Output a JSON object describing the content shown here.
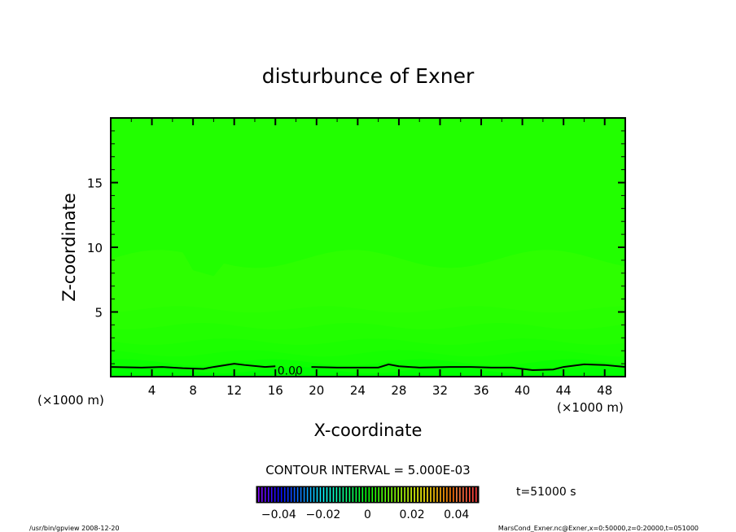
{
  "chart_data": {
    "type": "heatmap",
    "title": "disturbunce of Exner",
    "xlabel": "X-coordinate",
    "ylabel": "Z-coordinate",
    "x_unit_left": "(×1000 m)",
    "x_unit_right": "(×1000 m)",
    "xlim": [
      0,
      50
    ],
    "ylim": [
      0,
      20
    ],
    "xticks": [
      4,
      8,
      12,
      16,
      20,
      24,
      28,
      32,
      36,
      40,
      44,
      48
    ],
    "yticks": [
      5,
      10,
      15
    ],
    "contour_label": "0.00",
    "contour_interval_text": "CONTOUR INTERVAL = 5.000E-03",
    "colorbar": {
      "range": [
        -0.05,
        0.05
      ],
      "ticks": [
        "-0.04",
        "-0.02",
        "0",
        "0.02",
        "0.04"
      ],
      "tick_values": [
        -0.04,
        -0.02,
        0,
        0.02,
        0.04
      ]
    },
    "field_colors": [
      "#00ff00",
      "#0cff00",
      "#16ff00",
      "#1cff00",
      "#22ff00",
      "#28ff00",
      "#2dff00",
      "#22ff00"
    ],
    "time_label": "t=51000 s"
  },
  "footer": {
    "left": "/usr/bin/gpview  2008-12-20",
    "right": "MarsCond_Exner.nc@Exner,x=0:50000,z=0:20000,t=051000"
  }
}
